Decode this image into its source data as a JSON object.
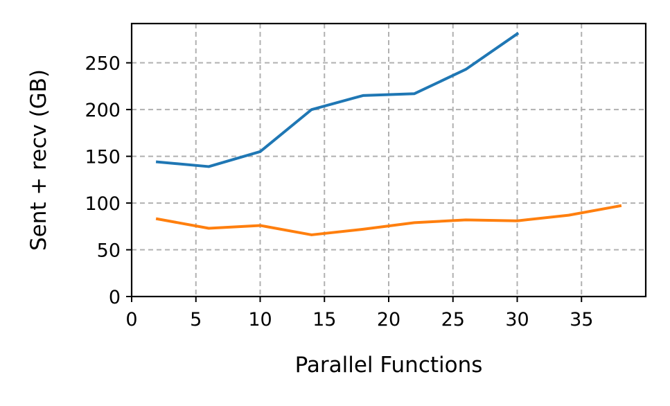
{
  "chart_data": {
    "type": "line",
    "xlabel": "Parallel Functions",
    "ylabel": "Sent + recv (GB)",
    "xlim": [
      0,
      40
    ],
    "ylim": [
      0,
      292
    ],
    "xticks": [
      0,
      5,
      10,
      15,
      20,
      25,
      30,
      35
    ],
    "yticks": [
      0,
      50,
      100,
      150,
      200,
      250
    ],
    "grid": true,
    "series": [
      {
        "color": "#1f77b4",
        "x": [
          2,
          6,
          10,
          14,
          18,
          22,
          26,
          30
        ],
        "y": [
          144,
          139,
          155,
          200,
          215,
          217,
          243,
          281
        ]
      },
      {
        "color": "#ff7f0e",
        "x": [
          2,
          6,
          10,
          14,
          18,
          22,
          26,
          30,
          34,
          38
        ],
        "y": [
          83,
          73,
          76,
          66,
          72,
          79,
          82,
          81,
          87,
          97
        ]
      }
    ]
  }
}
